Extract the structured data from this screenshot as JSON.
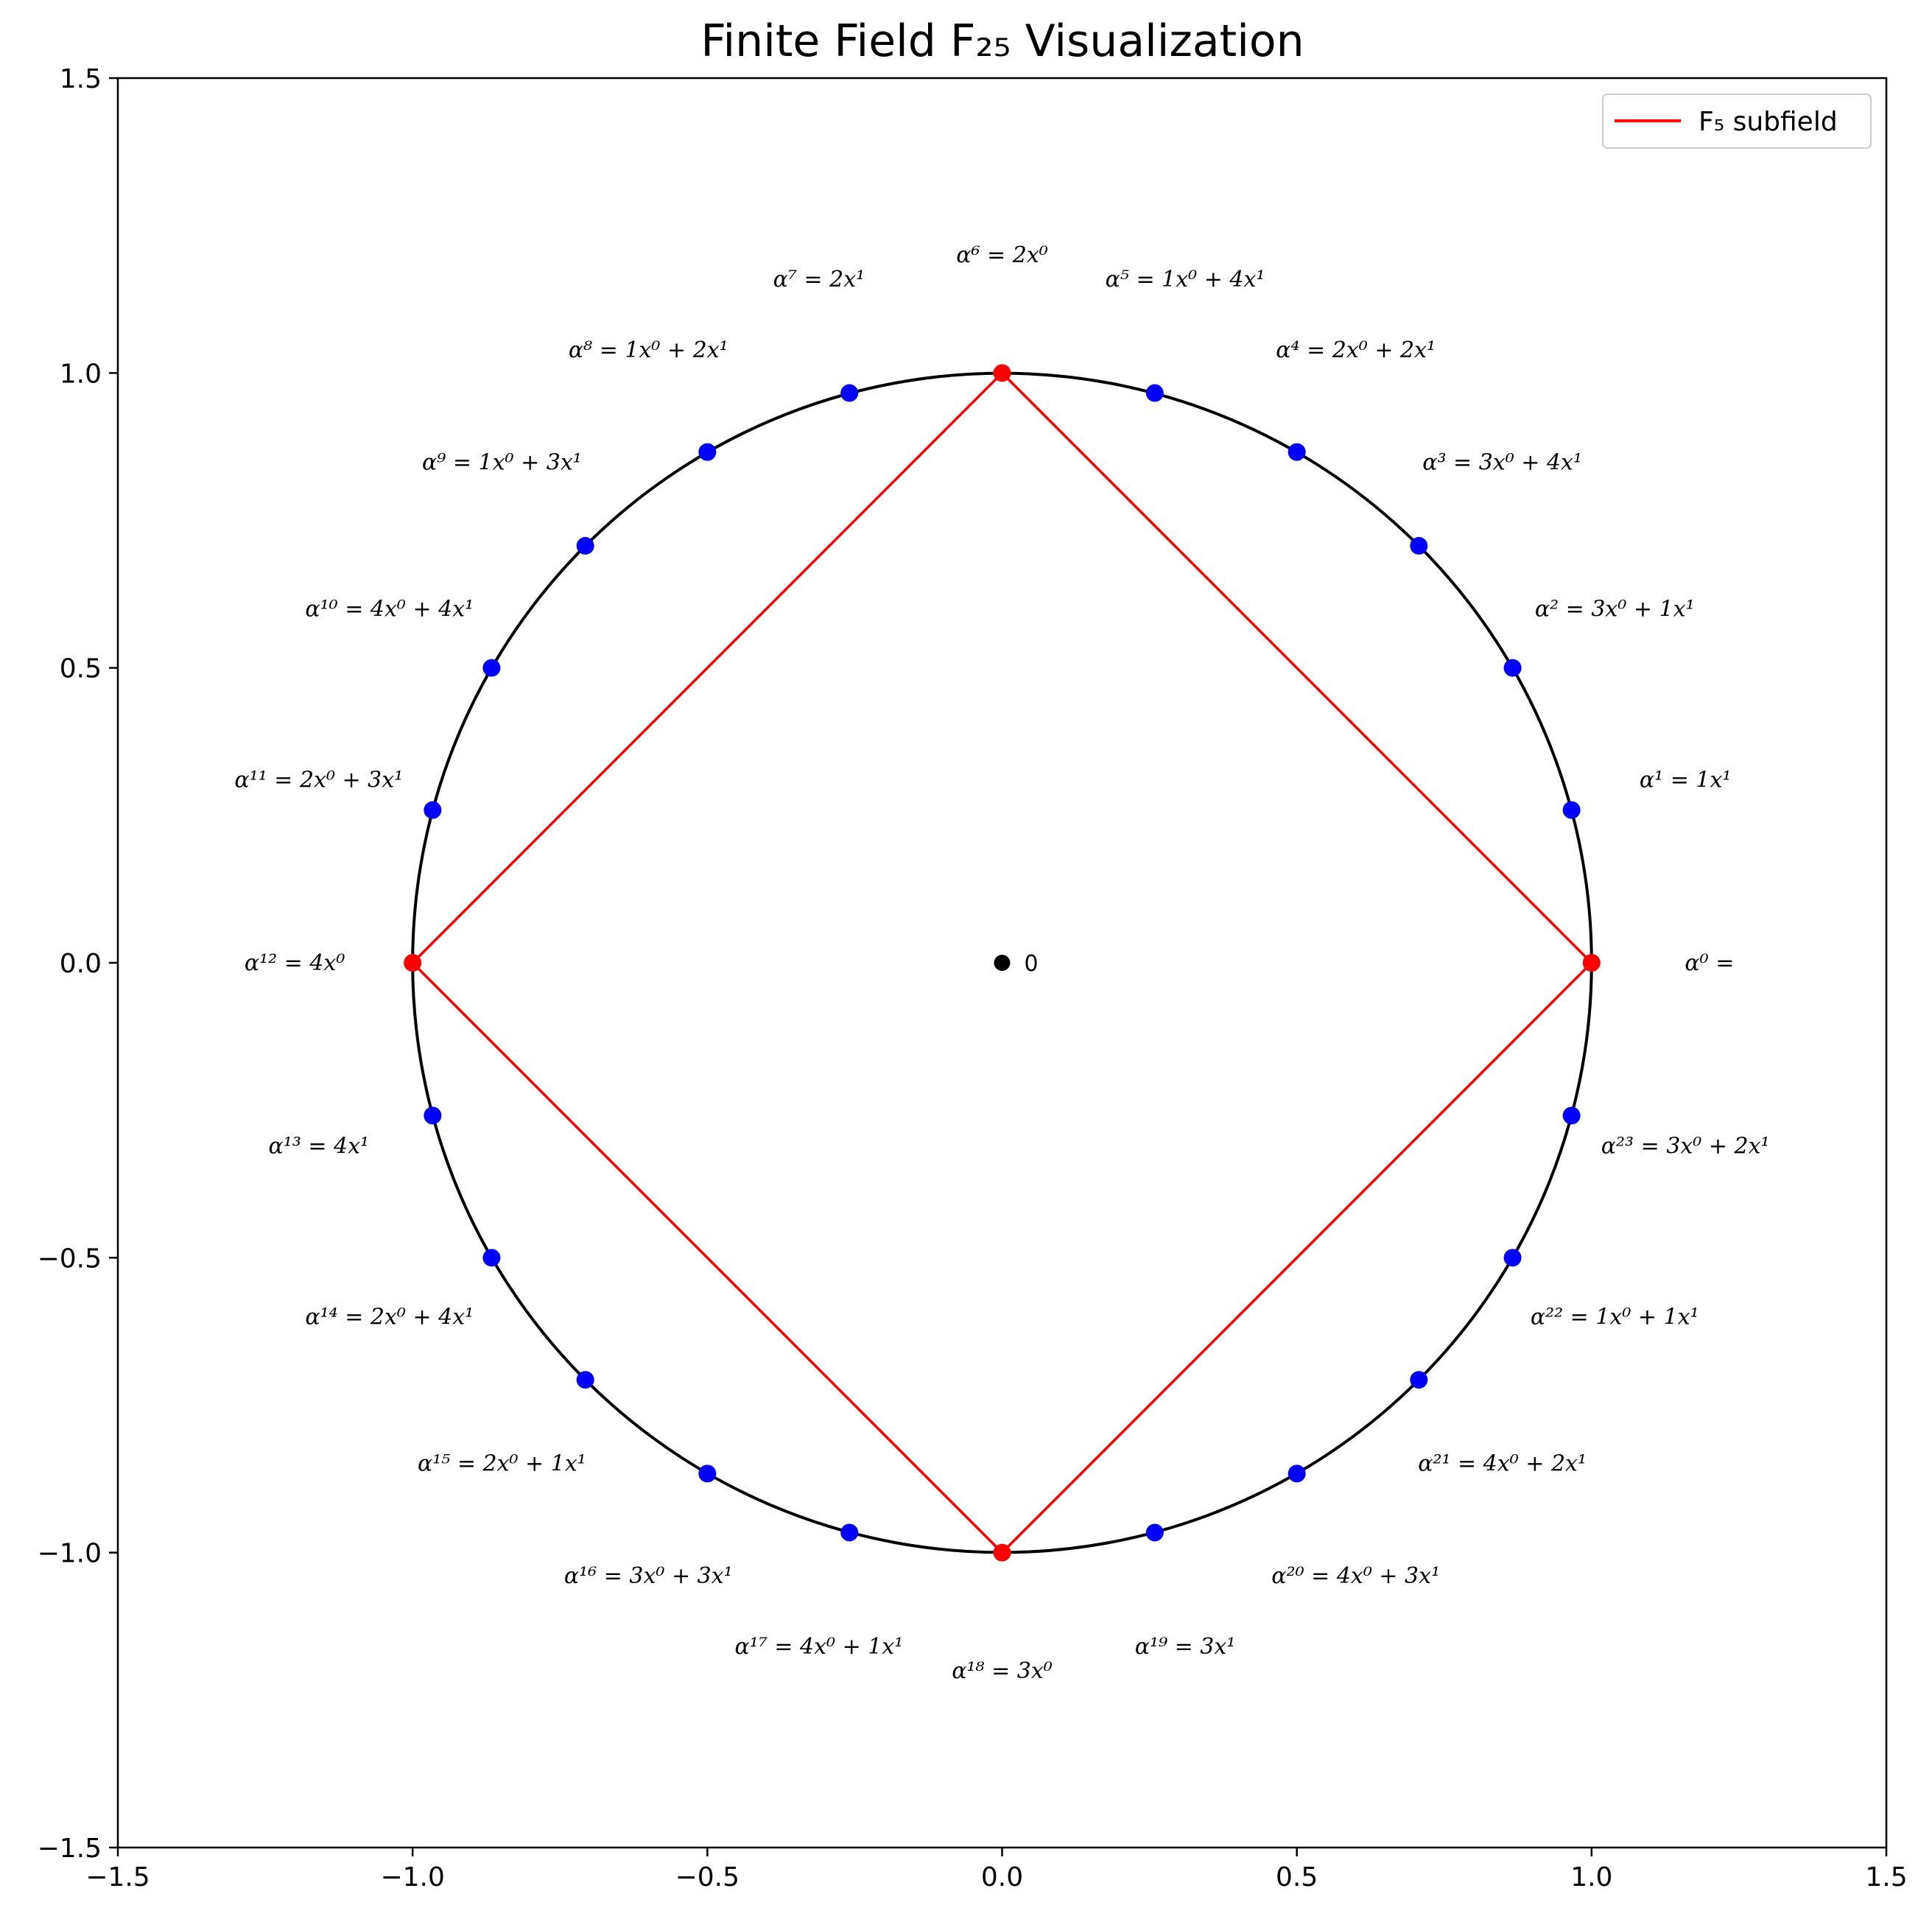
{
  "chart_data": {
    "type": "scatter",
    "title": "Finite Field F₂₅ Visualization",
    "xlabel": "",
    "ylabel": "",
    "xlim": [
      -1.5,
      1.5
    ],
    "ylim": [
      -1.5,
      1.5
    ],
    "xticks": [
      "−1.5",
      "−1.0",
      "−0.5",
      "0.0",
      "0.5",
      "1.0",
      "1.5"
    ],
    "yticks": [
      "−1.5",
      "−1.0",
      "−0.5",
      "0.0",
      "0.5",
      "1.0",
      "1.5"
    ],
    "grid": false,
    "legend": {
      "placement": "top-right",
      "entries": [
        {
          "name": "F₅ subfield",
          "color": "#ff0000"
        }
      ]
    },
    "colors": {
      "circle": "#000000",
      "element": "#0000ff",
      "subfield": "#ff0000",
      "zero": "#000000"
    },
    "unit_circle": {
      "center": [
        0,
        0
      ],
      "radius": 1
    },
    "zero_point": {
      "x": 0.0,
      "y": 0.0,
      "label": "0"
    },
    "subfield_polygon": [
      [
        1,
        0
      ],
      [
        0,
        1
      ],
      [
        -1,
        0
      ],
      [
        0,
        -1
      ]
    ],
    "points": [
      {
        "k": 0,
        "x": 1.0,
        "y": 0.0,
        "subfield": true,
        "label": "α⁰ ="
      },
      {
        "k": 1,
        "x": 0.966,
        "y": 0.259,
        "subfield": false,
        "label": "α¹ = 1x¹"
      },
      {
        "k": 2,
        "x": 0.866,
        "y": 0.5,
        "subfield": false,
        "label": "α² = 3x⁰ + 1x¹"
      },
      {
        "k": 3,
        "x": 0.707,
        "y": 0.707,
        "subfield": false,
        "label": "α³ = 3x⁰ + 4x¹"
      },
      {
        "k": 4,
        "x": 0.5,
        "y": 0.866,
        "subfield": false,
        "label": "α⁴ = 2x⁰ + 2x¹"
      },
      {
        "k": 5,
        "x": 0.259,
        "y": 0.966,
        "subfield": false,
        "label": "α⁵ = 1x⁰ + 4x¹"
      },
      {
        "k": 6,
        "x": 0.0,
        "y": 1.0,
        "subfield": true,
        "label": "α⁶ = 2x⁰"
      },
      {
        "k": 7,
        "x": -0.259,
        "y": 0.966,
        "subfield": false,
        "label": "α⁷ = 2x¹"
      },
      {
        "k": 8,
        "x": -0.5,
        "y": 0.866,
        "subfield": false,
        "label": "α⁸ = 1x⁰ + 2x¹"
      },
      {
        "k": 9,
        "x": -0.707,
        "y": 0.707,
        "subfield": false,
        "label": "α⁹ = 1x⁰ + 3x¹"
      },
      {
        "k": 10,
        "x": -0.866,
        "y": 0.5,
        "subfield": false,
        "label": "α¹⁰ = 4x⁰ + 4x¹"
      },
      {
        "k": 11,
        "x": -0.966,
        "y": 0.259,
        "subfield": false,
        "label": "α¹¹ = 2x⁰ + 3x¹"
      },
      {
        "k": 12,
        "x": -1.0,
        "y": 0.0,
        "subfield": true,
        "label": "α¹² = 4x⁰"
      },
      {
        "k": 13,
        "x": -0.966,
        "y": -0.259,
        "subfield": false,
        "label": "α¹³ = 4x¹"
      },
      {
        "k": 14,
        "x": -0.866,
        "y": -0.5,
        "subfield": false,
        "label": "α¹⁴ = 2x⁰ + 4x¹"
      },
      {
        "k": 15,
        "x": -0.707,
        "y": -0.707,
        "subfield": false,
        "label": "α¹⁵ = 2x⁰ + 1x¹"
      },
      {
        "k": 16,
        "x": -0.5,
        "y": -0.866,
        "subfield": false,
        "label": "α¹⁶ = 3x⁰ + 3x¹"
      },
      {
        "k": 17,
        "x": -0.259,
        "y": -0.966,
        "subfield": false,
        "label": "α¹⁷ = 4x⁰ + 1x¹"
      },
      {
        "k": 18,
        "x": 0.0,
        "y": -1.0,
        "subfield": true,
        "label": "α¹⁸ = 3x⁰"
      },
      {
        "k": 19,
        "x": 0.259,
        "y": -0.966,
        "subfield": false,
        "label": "α¹⁹ = 3x¹"
      },
      {
        "k": 20,
        "x": 0.5,
        "y": -0.866,
        "subfield": false,
        "label": "α²⁰ = 4x⁰ + 3x¹"
      },
      {
        "k": 21,
        "x": 0.707,
        "y": -0.707,
        "subfield": false,
        "label": "α²¹ = 4x⁰ + 2x¹"
      },
      {
        "k": 22,
        "x": 0.866,
        "y": -0.5,
        "subfield": false,
        "label": "α²² = 1x⁰ + 1x¹"
      },
      {
        "k": 23,
        "x": 0.966,
        "y": -0.259,
        "subfield": false,
        "label": "α²³ = 3x⁰ + 2x¹"
      }
    ]
  }
}
